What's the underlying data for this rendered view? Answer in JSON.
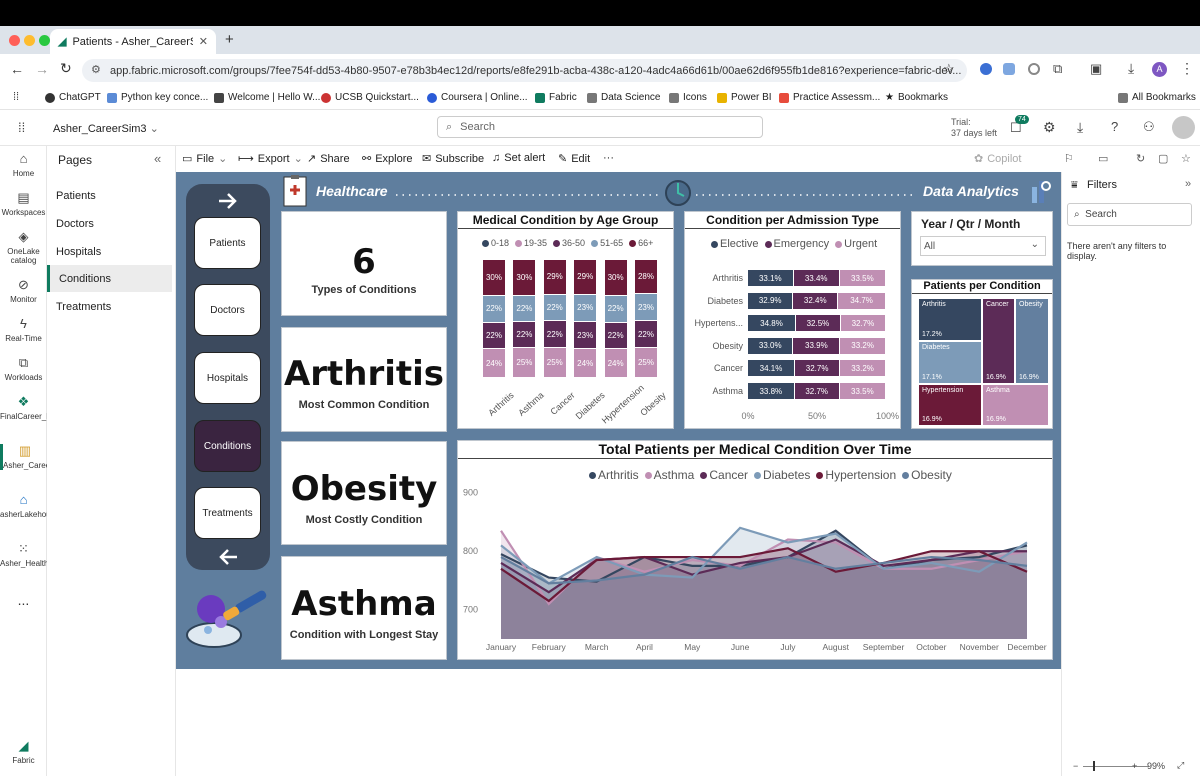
{
  "browser": {
    "tab_title": "Patients - Asher_CareerSim3",
    "url": "app.fabric.microsoft.com/groups/7fee754f-dd53-4b80-9507-e78b3b4ec12d/reports/e8fe291b-acba-438c-a120-4adc4a66d61b/00ae62d6f955fb1de816?experience=fabric-dev...",
    "profile": "A",
    "bookmarks": [
      "ChatGPT",
      "Python key conce...",
      "Welcome | Hello W...",
      "UCSB Quickstart...",
      "Coursera | Online...",
      "Fabric",
      "Data Science",
      "Icons",
      "Power BI",
      "Practice Assessm...",
      "Bookmarks"
    ],
    "all_bookmarks": "All Bookmarks"
  },
  "app": {
    "workspace": "Asher_CareerSim3",
    "search_placeholder": "Search",
    "trial_line1": "Trial:",
    "trial_line2": "37 days left",
    "notif_count": "74"
  },
  "rail": [
    {
      "label": "Home",
      "icon": "home-icon"
    },
    {
      "label": "Workspaces",
      "icon": "workspaces-icon"
    },
    {
      "label": "OneLake catalog",
      "icon": "onelake-icon"
    },
    {
      "label": "Monitor",
      "icon": "monitor-icon"
    },
    {
      "label": "Real-Time",
      "icon": "realtime-icon"
    },
    {
      "label": "Workloads",
      "icon": "workloads-icon"
    },
    {
      "label": "FinalCareer_March202...",
      "icon": "workspace-icon"
    },
    {
      "label": "Asher_CareerSim3",
      "icon": "report-icon"
    },
    {
      "label": "asherLakehouse",
      "icon": "lakehouse-icon"
    },
    {
      "label": "Asher_HealthcareSM",
      "icon": "semantic-model-icon"
    },
    {
      "label": "...",
      "icon": "more-icon"
    },
    {
      "label": "Fabric",
      "icon": "fabric-icon"
    }
  ],
  "pages": {
    "title": "Pages",
    "items": [
      "Patients",
      "Doctors",
      "Hospitals",
      "Conditions",
      "Treatments"
    ],
    "active": 3
  },
  "toolbar": {
    "file": "File",
    "export": "Export",
    "share": "Share",
    "explore": "Explore",
    "subscribe": "Subscribe",
    "alert": "Set alert",
    "edit": "Edit",
    "more": "···",
    "copilot": "Copilot"
  },
  "report": {
    "header_left": "Healthcare",
    "header_right": "Data Analytics",
    "nav_buttons": [
      "Patients",
      "Doctors",
      "Hospitals",
      "Conditions",
      "Treatments"
    ],
    "kpis": [
      {
        "value": "6",
        "label": "Types of Conditions"
      },
      {
        "value": "Arthritis",
        "label": "Most Common Condition"
      },
      {
        "value": "Obesity",
        "label": "Most Costly Condition"
      },
      {
        "value": "Asthma",
        "label": "Condition with Longest Stay"
      }
    ],
    "slicer": {
      "title": "Year / Qtr / Month",
      "value": "All"
    }
  },
  "colors": {
    "navy": "#354760",
    "purple": "#5c2b57",
    "plum": "#6b1a38",
    "pink": "#c08fb3",
    "steel": "#7d9bb8",
    "maroon": "#6b1a38",
    "canvas": "#5f7e9e"
  },
  "filters": {
    "title": "Filters",
    "search": "Search",
    "empty": "There aren't any filters to display."
  },
  "chart_data": [
    {
      "type": "bar",
      "title": "Medical Condition by Age Group",
      "stacked": "100%",
      "categories": [
        "Arthritis",
        "Asthma",
        "Cancer",
        "Diabetes",
        "Hypertension",
        "Obesity"
      ],
      "series": [
        {
          "name": "0-18",
          "values": [
            0,
            0,
            0,
            0,
            0,
            0
          ]
        },
        {
          "name": "19-35",
          "values": [
            24,
            25,
            25,
            24,
            24,
            25
          ]
        },
        {
          "name": "36-50",
          "values": [
            22,
            22,
            22,
            23,
            22,
            22
          ]
        },
        {
          "name": "51-65",
          "values": [
            22,
            22,
            22,
            23,
            22,
            23
          ]
        },
        {
          "name": "66+",
          "values": [
            30,
            30,
            29,
            29,
            30,
            28
          ]
        }
      ],
      "labels": [
        [
          "24%",
          "22%",
          "22%",
          "30%"
        ],
        [
          "25%",
          "22%",
          "22%",
          "30%"
        ],
        [
          "25%",
          "22%",
          "22%",
          "29%"
        ],
        [
          "24%",
          "23%",
          "23%",
          "29%"
        ],
        [
          "24%",
          "22%",
          "22%",
          "30%"
        ],
        [
          "25%",
          "22%",
          "23%",
          "28%"
        ]
      ]
    },
    {
      "type": "bar",
      "orientation": "horizontal",
      "stacked": "100%",
      "title": "Condition per Admission Type",
      "categories": [
        "Arthritis",
        "Diabetes",
        "Hypertens...",
        "Obesity",
        "Cancer",
        "Asthma"
      ],
      "series": [
        {
          "name": "Elective",
          "values": [
            33.1,
            32.9,
            34.8,
            33.0,
            34.1,
            33.8
          ]
        },
        {
          "name": "Emergency",
          "values": [
            33.4,
            32.4,
            32.5,
            33.9,
            32.7,
            32.7
          ]
        },
        {
          "name": "Urgent",
          "values": [
            33.5,
            34.7,
            32.7,
            33.2,
            33.2,
            33.5
          ]
        }
      ],
      "x_ticks": [
        "0%",
        "50%",
        "100%"
      ]
    },
    {
      "type": "treemap",
      "title": "Patients per Condition",
      "items": [
        {
          "name": "Arthritis",
          "value": "17.2%"
        },
        {
          "name": "Cancer",
          "value": "16.9%"
        },
        {
          "name": "Obesity",
          "value": "16.9%"
        },
        {
          "name": "Diabetes",
          "value": "17.1%"
        },
        {
          "name": "Hypertension",
          "value": "16.9%"
        },
        {
          "name": "Asthma",
          "value": "16.9%"
        }
      ]
    },
    {
      "type": "area",
      "title": "Total Patients per Medical Condition Over Time",
      "categories": [
        "January",
        "February",
        "March",
        "April",
        "May",
        "June",
        "July",
        "August",
        "September",
        "October",
        "November",
        "December"
      ],
      "ylim": [
        650,
        920
      ],
      "y_ticks": [
        700,
        800,
        900
      ],
      "series": [
        {
          "name": "Arthritis",
          "values": [
            795,
            755,
            748,
            790,
            775,
            775,
            790,
            835,
            770,
            785,
            790,
            810
          ]
        },
        {
          "name": "Asthma",
          "values": [
            835,
            710,
            790,
            765,
            785,
            775,
            820,
            815,
            770,
            770,
            785,
            800
          ]
        },
        {
          "name": "Cancer",
          "values": [
            780,
            730,
            785,
            790,
            760,
            780,
            790,
            820,
            775,
            785,
            800,
            800
          ]
        },
        {
          "name": "Diabetes",
          "values": [
            810,
            745,
            790,
            760,
            755,
            840,
            815,
            830,
            770,
            780,
            765,
            815
          ]
        },
        {
          "name": "Hypertension",
          "values": [
            770,
            715,
            785,
            790,
            790,
            790,
            805,
            765,
            780,
            800,
            800,
            765
          ]
        },
        {
          "name": "Obesity",
          "values": [
            790,
            745,
            750,
            760,
            790,
            770,
            790,
            770,
            780,
            790,
            785,
            775
          ]
        }
      ]
    }
  ]
}
